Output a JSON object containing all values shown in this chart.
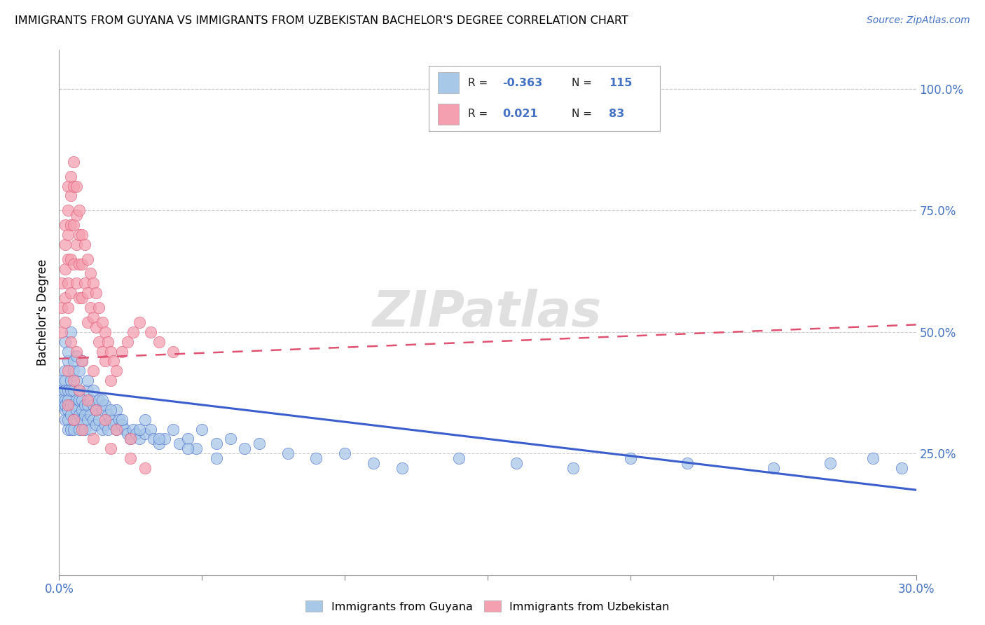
{
  "title": "IMMIGRANTS FROM GUYANA VS IMMIGRANTS FROM UZBEKISTAN BACHELOR'S DEGREE CORRELATION CHART",
  "source": "Source: ZipAtlas.com",
  "ylabel": "Bachelor's Degree",
  "ytick_labels": [
    "100.0%",
    "75.0%",
    "50.0%",
    "25.0%"
  ],
  "ytick_positions": [
    1.0,
    0.75,
    0.5,
    0.25
  ],
  "xmin": 0.0,
  "xmax": 0.3,
  "ymin": 0.0,
  "ymax": 1.08,
  "color_guyana": "#a8c8e8",
  "color_uzbekistan": "#f4a0b0",
  "color_guyana_line": "#3a5fcd",
  "color_uzbekistan_line": "#e05070",
  "color_text_blue": "#4472c4",
  "watermark": "ZIPatlas",
  "guyana_trend_x": [
    0.0,
    0.3
  ],
  "guyana_trend_y": [
    0.385,
    0.175
  ],
  "uzbekistan_trend_x": [
    0.0,
    0.3
  ],
  "uzbekistan_trend_y": [
    0.445,
    0.515
  ],
  "scatter_guyana_x": [
    0.001,
    0.001,
    0.001,
    0.001,
    0.002,
    0.002,
    0.002,
    0.002,
    0.002,
    0.002,
    0.002,
    0.003,
    0.003,
    0.003,
    0.003,
    0.003,
    0.003,
    0.004,
    0.004,
    0.004,
    0.004,
    0.004,
    0.005,
    0.005,
    0.005,
    0.005,
    0.005,
    0.006,
    0.006,
    0.006,
    0.006,
    0.007,
    0.007,
    0.007,
    0.007,
    0.008,
    0.008,
    0.008,
    0.009,
    0.009,
    0.009,
    0.01,
    0.01,
    0.01,
    0.011,
    0.011,
    0.011,
    0.012,
    0.012,
    0.013,
    0.013,
    0.014,
    0.014,
    0.015,
    0.015,
    0.016,
    0.016,
    0.017,
    0.017,
    0.018,
    0.019,
    0.02,
    0.02,
    0.021,
    0.022,
    0.023,
    0.024,
    0.025,
    0.026,
    0.027,
    0.028,
    0.03,
    0.03,
    0.032,
    0.033,
    0.035,
    0.037,
    0.04,
    0.042,
    0.045,
    0.048,
    0.05,
    0.055,
    0.06,
    0.065,
    0.07,
    0.08,
    0.09,
    0.1,
    0.11,
    0.12,
    0.14,
    0.16,
    0.18,
    0.2,
    0.22,
    0.25,
    0.27,
    0.285,
    0.295,
    0.002,
    0.003,
    0.004,
    0.005,
    0.006,
    0.007,
    0.008,
    0.01,
    0.012,
    0.015,
    0.018,
    0.022,
    0.028,
    0.035,
    0.045,
    0.055
  ],
  "scatter_guyana_y": [
    0.38,
    0.4,
    0.35,
    0.36,
    0.42,
    0.4,
    0.36,
    0.34,
    0.38,
    0.35,
    0.32,
    0.44,
    0.38,
    0.36,
    0.34,
    0.32,
    0.3,
    0.4,
    0.38,
    0.35,
    0.33,
    0.3,
    0.42,
    0.38,
    0.35,
    0.32,
    0.3,
    0.4,
    0.36,
    0.34,
    0.32,
    0.38,
    0.36,
    0.33,
    0.3,
    0.36,
    0.34,
    0.32,
    0.35,
    0.33,
    0.3,
    0.38,
    0.35,
    0.32,
    0.36,
    0.33,
    0.3,
    0.35,
    0.32,
    0.34,
    0.31,
    0.36,
    0.32,
    0.34,
    0.3,
    0.35,
    0.31,
    0.33,
    0.3,
    0.32,
    0.31,
    0.34,
    0.3,
    0.32,
    0.31,
    0.3,
    0.29,
    0.28,
    0.3,
    0.29,
    0.28,
    0.32,
    0.29,
    0.3,
    0.28,
    0.27,
    0.28,
    0.3,
    0.27,
    0.28,
    0.26,
    0.3,
    0.27,
    0.28,
    0.26,
    0.27,
    0.25,
    0.24,
    0.25,
    0.23,
    0.22,
    0.24,
    0.23,
    0.22,
    0.24,
    0.23,
    0.22,
    0.23,
    0.24,
    0.22,
    0.48,
    0.46,
    0.5,
    0.44,
    0.45,
    0.42,
    0.44,
    0.4,
    0.38,
    0.36,
    0.34,
    0.32,
    0.3,
    0.28,
    0.26,
    0.24
  ],
  "scatter_uzbekistan_x": [
    0.001,
    0.001,
    0.001,
    0.002,
    0.002,
    0.002,
    0.002,
    0.002,
    0.003,
    0.003,
    0.003,
    0.003,
    0.003,
    0.003,
    0.004,
    0.004,
    0.004,
    0.004,
    0.004,
    0.005,
    0.005,
    0.005,
    0.005,
    0.006,
    0.006,
    0.006,
    0.006,
    0.007,
    0.007,
    0.007,
    0.007,
    0.008,
    0.008,
    0.008,
    0.009,
    0.009,
    0.01,
    0.01,
    0.01,
    0.011,
    0.011,
    0.012,
    0.012,
    0.013,
    0.013,
    0.014,
    0.014,
    0.015,
    0.015,
    0.016,
    0.016,
    0.017,
    0.018,
    0.019,
    0.02,
    0.022,
    0.024,
    0.026,
    0.028,
    0.032,
    0.035,
    0.04,
    0.003,
    0.005,
    0.007,
    0.01,
    0.013,
    0.016,
    0.02,
    0.025,
    0.004,
    0.006,
    0.008,
    0.012,
    0.018,
    0.003,
    0.005,
    0.008,
    0.012,
    0.018,
    0.025,
    0.03
  ],
  "scatter_uzbekistan_y": [
    0.6,
    0.55,
    0.5,
    0.72,
    0.68,
    0.63,
    0.57,
    0.52,
    0.8,
    0.75,
    0.7,
    0.65,
    0.6,
    0.55,
    0.82,
    0.78,
    0.72,
    0.65,
    0.58,
    0.85,
    0.8,
    0.72,
    0.64,
    0.8,
    0.74,
    0.68,
    0.6,
    0.75,
    0.7,
    0.64,
    0.57,
    0.7,
    0.64,
    0.57,
    0.68,
    0.6,
    0.65,
    0.58,
    0.52,
    0.62,
    0.55,
    0.6,
    0.53,
    0.58,
    0.51,
    0.55,
    0.48,
    0.52,
    0.46,
    0.5,
    0.44,
    0.48,
    0.46,
    0.44,
    0.42,
    0.46,
    0.48,
    0.5,
    0.52,
    0.5,
    0.48,
    0.46,
    0.42,
    0.4,
    0.38,
    0.36,
    0.34,
    0.32,
    0.3,
    0.28,
    0.48,
    0.46,
    0.44,
    0.42,
    0.4,
    0.35,
    0.32,
    0.3,
    0.28,
    0.26,
    0.24,
    0.22
  ]
}
